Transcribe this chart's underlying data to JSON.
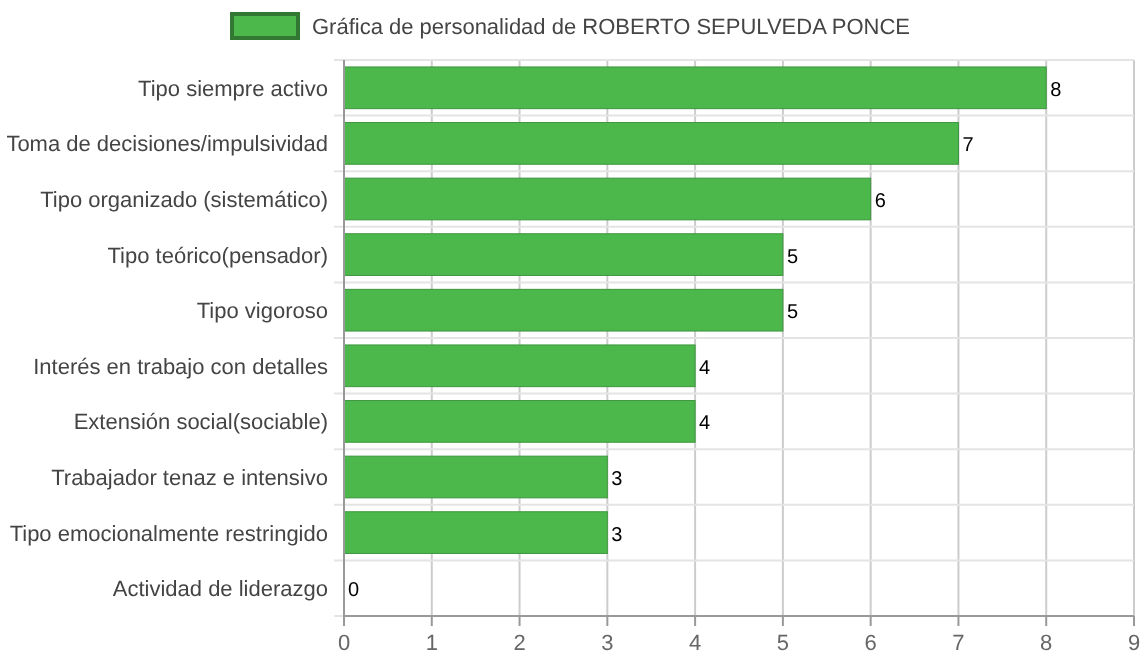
{
  "chart_data": {
    "type": "bar",
    "orientation": "horizontal",
    "categories": [
      "Tipo siempre activo",
      "Toma de decisiones/impulsividad",
      "Tipo organizado (sistemático)",
      "Tipo teórico(pensador)",
      "Tipo vigoroso",
      "Interés en trabajo con detalles",
      "Extensión social(sociable)",
      "Trabajador tenaz e intensivo",
      "Tipo emocionalmente restringido",
      "Actividad de liderazgo"
    ],
    "series": [
      {
        "name": "Gráfica de personalidad de ROBERTO SEPULVEDA PONCE",
        "color": "#4cb84c",
        "values": [
          8,
          7,
          6,
          5,
          5,
          4,
          4,
          3,
          3,
          0
        ]
      }
    ],
    "xlim": [
      0,
      9
    ],
    "xticks": [
      0,
      1,
      2,
      3,
      4,
      5,
      6,
      7,
      8,
      9
    ],
    "grid": true,
    "legend": "top",
    "data_labels": true
  }
}
